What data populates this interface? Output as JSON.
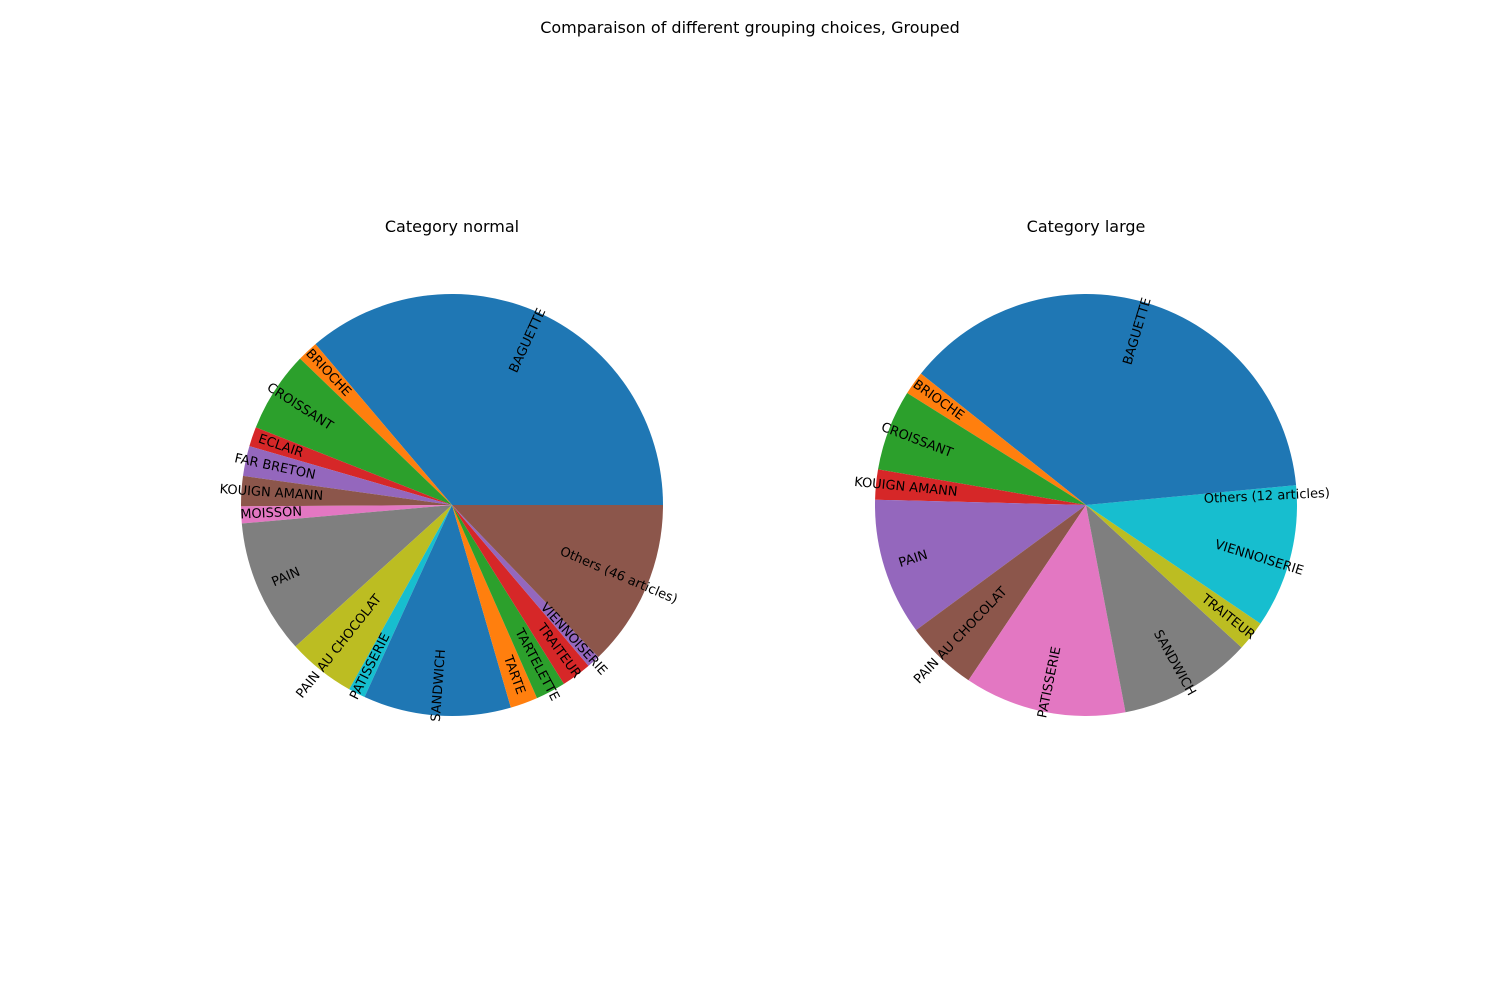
{
  "figure": {
    "title": "Comparaison of different grouping choices, Grouped"
  },
  "chart_data": [
    {
      "type": "pie",
      "title": "Category normal",
      "start_angle": 0,
      "direction": "counterclockwise",
      "labels": [
        "BAGUETTE",
        "BRIOCHE",
        "CROISSANT",
        "ECLAIR",
        "FAR BRETON",
        "KOUIGN AMANN",
        "MOISSON",
        "PAIN",
        "PAIN AU CHOCOLAT",
        "PATISSERIE",
        "SANDWICH",
        "TARTE",
        "TARTELETTE",
        "TRAITEUR",
        "VIENNOISERIE",
        "Others (46 articles)"
      ],
      "values": [
        36.2,
        1.6,
        6.2,
        1.5,
        2.3,
        2.3,
        1.3,
        10.3,
        5.2,
        1.3,
        11.3,
        2.1,
        2.3,
        2.3,
        1.0,
        12.8
      ],
      "colors": [
        "#1f77b4",
        "#ff7f0e",
        "#2ca02c",
        "#d62728",
        "#9467bd",
        "#8c564b",
        "#e377c2",
        "#7f7f7f",
        "#bcbd22",
        "#17becf",
        "#1f77b4",
        "#ff7f0e",
        "#2ca02c",
        "#d62728",
        "#9467bd",
        "#8c564b"
      ]
    },
    {
      "type": "pie",
      "title": "Category large",
      "start_angle": 0,
      "direction": "counterclockwise",
      "labels": [
        "Others (12 articles)",
        "BAGUETTE",
        "BRIOCHE",
        "CROISSANT",
        "KOUIGN AMANN",
        "PAIN",
        "PAIN AU CHOCOLAT",
        "PATISSERIE",
        "SANDWICH",
        "TRAITEUR",
        "VIENNOISERIE"
      ],
      "values": [
        1.5,
        37.8,
        1.8,
        6.2,
        2.3,
        10.5,
        5.5,
        12.4,
        10.2,
        2.3,
        9.5
      ],
      "colors": [
        "#17becf",
        "#1f77b4",
        "#ff7f0e",
        "#2ca02c",
        "#d62728",
        "#9467bd",
        "#8c564b",
        "#e377c2",
        "#7f7f7f",
        "#bcbd22",
        "#17becf"
      ]
    }
  ]
}
